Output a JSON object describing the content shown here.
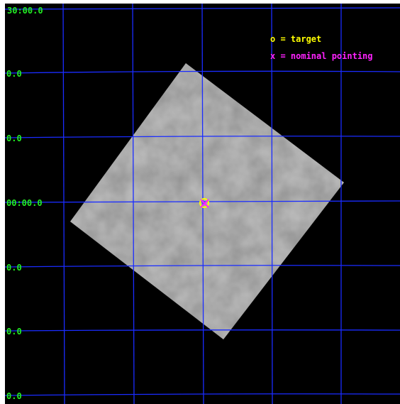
{
  "colors": {
    "background": "#000000",
    "grid": "#1a2cff",
    "coordinate_label": "#22ee22",
    "target": "#ffff00",
    "nominal_pointing": "#ff22ff",
    "image_tile": "#9a9a9a"
  },
  "coordinate_labels": [
    "30:00.0",
    "0.0",
    "0.0",
    "00:00.0",
    "0.0",
    "0.0",
    "0.0"
  ],
  "legend": {
    "target": "o = target",
    "nominal_pointing": "x = nominal pointing"
  },
  "markers": {
    "target_icon": "circle-icon",
    "nominal_pointing_icon": "cross-icon"
  }
}
